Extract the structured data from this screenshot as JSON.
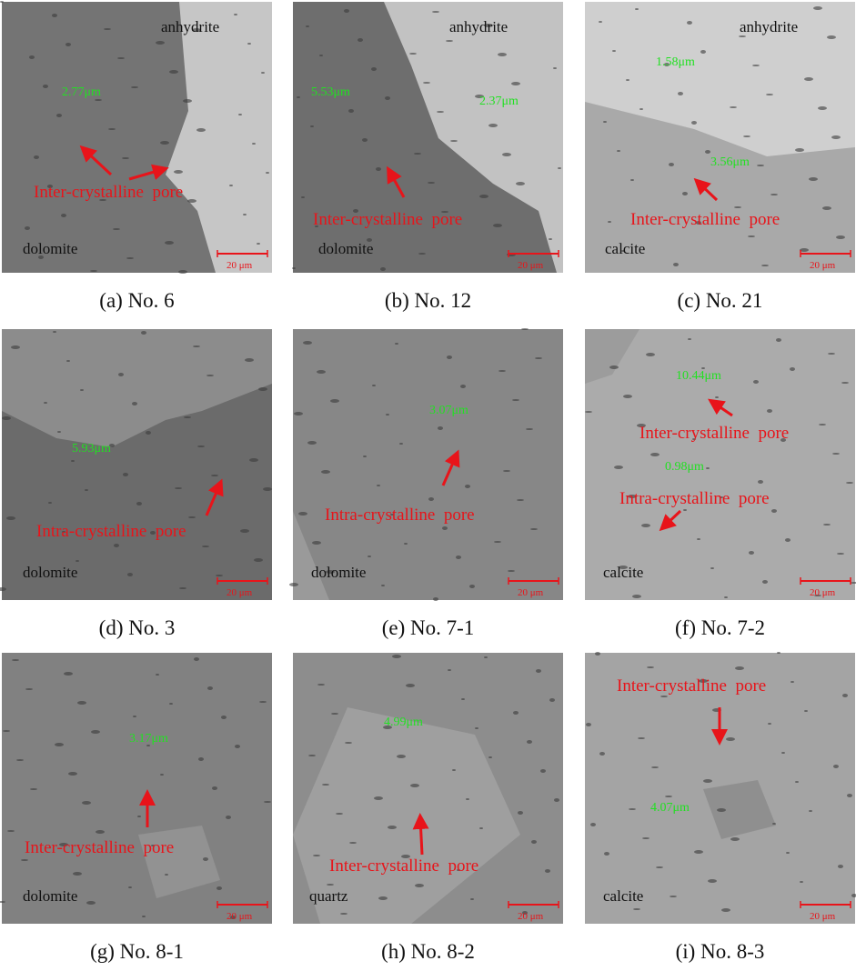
{
  "panels": [
    {
      "caption": "(a) No. 6",
      "labels": [
        "anhydrite",
        "2.77μm",
        "Inter-crystalline  pore",
        "dolomite"
      ],
      "scale": "20 μm"
    },
    {
      "caption": "(b) No. 12",
      "labels": [
        "anhydrite",
        "5.53μm",
        "2.37μm",
        "Inter-crystalline  pore",
        "dolomite"
      ],
      "scale": "20 μm"
    },
    {
      "caption": "(c) No. 21",
      "labels": [
        "anhydrite",
        "1.58μm",
        "3.56μm",
        "Inter-crystalline  pore",
        "calcite"
      ],
      "scale": "20 μm"
    },
    {
      "caption": "(d) No. 3",
      "labels": [
        "5.93μm",
        "Intra-crystalline  pore",
        "dolomite"
      ],
      "scale": "20 μm"
    },
    {
      "caption": "(e) No. 7-1",
      "labels": [
        "3.07μm",
        "Intra-crystalline  pore",
        "dolomite"
      ],
      "scale": "20 μm"
    },
    {
      "caption": "(f) No. 7-2",
      "labels": [
        "10.44μm",
        "Inter-crystalline  pore",
        "0.98μm",
        "Intra-crystalline  pore",
        "calcite"
      ],
      "scale": "20 μm"
    },
    {
      "caption": "(g) No. 8-1",
      "labels": [
        "3.17μm",
        "Inter-crystalline  pore",
        "dolomite"
      ],
      "scale": "20 μm"
    },
    {
      "caption": "(h) No. 8-2",
      "labels": [
        "4.99μm",
        "Inter-crystalline  pore",
        "quartz"
      ],
      "scale": "20 μm"
    },
    {
      "caption": "(i) No. 8-3",
      "labels": [
        "Inter-crystalline  pore",
        "4.07μm",
        "calcite"
      ],
      "scale": "20 μm"
    }
  ]
}
